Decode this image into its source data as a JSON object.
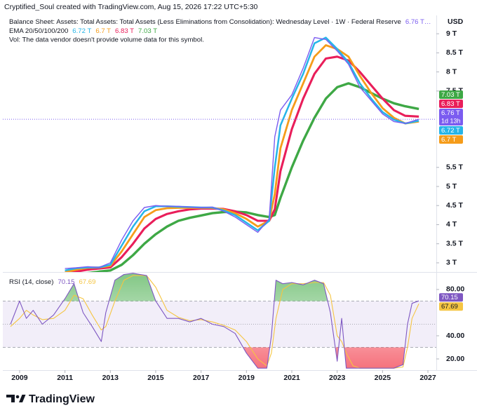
{
  "header": {
    "attribution": "Cryptified_Soul created with TradingView.com, Aug 15, 2026 17:22 UTC+5:30"
  },
  "chart_data": [
    {
      "type": "line",
      "title": "Balance Sheet: Assets: Total Assets: Total Assets (Less Eliminations from Consolidation): Wednesday Level · 1W · Federal Reserve",
      "indicator": "EMA 20/50/100/200",
      "note": "Vol: The data vendor doesn't provide volume data for this symbol.",
      "currency": "USD",
      "x": [
        2011,
        2011.5,
        2012,
        2012.5,
        2013,
        2013.5,
        2014,
        2014.5,
        2015,
        2015.5,
        2016,
        2016.5,
        2017,
        2017.5,
        2018,
        2018.5,
        2019,
        2019.5,
        2020,
        2020.25,
        2020.5,
        2021,
        2021.5,
        2022,
        2022.5,
        2023,
        2023.5,
        2024,
        2024.5,
        2025,
        2025.5,
        2026,
        2026.6
      ],
      "xlim": [
        2008.26,
        2027.37
      ],
      "ylim": [
        2.76,
        9.48
      ],
      "yticks": [
        {
          "value": 9,
          "label": "9 T"
        },
        {
          "value": 8.5,
          "label": "8.5 T"
        },
        {
          "value": 8,
          "label": "8 T"
        },
        {
          "value": 7.5,
          "label": "7.5 T"
        },
        {
          "value": 5.5,
          "label": "5.5 T"
        },
        {
          "value": 5,
          "label": "5 T"
        },
        {
          "value": 4.5,
          "label": "4.5 T"
        },
        {
          "value": 4,
          "label": "4 T"
        },
        {
          "value": 3.5,
          "label": "3.5 T"
        },
        {
          "value": 3,
          "label": "3 T"
        }
      ],
      "series": [
        {
          "color": "#7b5cf0",
          "legend_label": "6.76 T…",
          "last_label": "6.76 T",
          "countdown": "1d 13h",
          "values": [
            2.85,
            2.87,
            2.9,
            2.88,
            3.0,
            3.6,
            4.1,
            4.45,
            4.5,
            4.48,
            4.48,
            4.46,
            4.45,
            4.46,
            4.35,
            4.2,
            4.0,
            3.8,
            4.15,
            6.3,
            7.0,
            7.4,
            8.1,
            8.9,
            8.85,
            8.55,
            8.2,
            7.6,
            7.25,
            6.9,
            6.7,
            6.65,
            6.76
          ]
        },
        {
          "color": "#26b5e8",
          "legend_label": "6.72 T",
          "last_label": "6.72 T",
          "values": [
            2.8,
            2.86,
            2.88,
            2.88,
            2.95,
            3.45,
            3.95,
            4.35,
            4.48,
            4.48,
            4.47,
            4.46,
            4.45,
            4.45,
            4.37,
            4.25,
            4.05,
            3.85,
            4.1,
            5.5,
            6.6,
            7.3,
            7.95,
            8.75,
            8.9,
            8.6,
            8.25,
            7.7,
            7.3,
            6.95,
            6.75,
            6.65,
            6.72
          ]
        },
        {
          "color": "#f59c1a",
          "legend_label": "6.7 T",
          "last_label": "6.7 T",
          "values": [
            2.75,
            2.82,
            2.87,
            2.88,
            2.92,
            3.3,
            3.75,
            4.2,
            4.38,
            4.43,
            4.44,
            4.44,
            4.44,
            4.44,
            4.4,
            4.3,
            4.15,
            3.95,
            4.1,
            4.8,
            6.0,
            7.0,
            7.7,
            8.4,
            8.7,
            8.6,
            8.4,
            7.9,
            7.45,
            7.05,
            6.8,
            6.65,
            6.7
          ]
        },
        {
          "color": "#e91e5a",
          "legend_label": "6.83 T",
          "last_label": "6.83 T",
          "values": [
            2.7,
            2.77,
            2.82,
            2.85,
            2.88,
            3.15,
            3.5,
            3.9,
            4.15,
            4.28,
            4.35,
            4.4,
            4.42,
            4.42,
            4.41,
            4.35,
            4.25,
            4.1,
            4.1,
            4.4,
            5.4,
            6.5,
            7.3,
            7.95,
            8.35,
            8.4,
            8.3,
            8.0,
            7.65,
            7.3,
            7.0,
            6.85,
            6.83
          ]
        },
        {
          "color": "#3ea845",
          "legend_label": "7.03 T",
          "last_label": "7.03 T",
          "values": [
            2.6,
            2.68,
            2.73,
            2.77,
            2.8,
            2.95,
            3.2,
            3.5,
            3.75,
            3.95,
            4.1,
            4.18,
            4.24,
            4.3,
            4.33,
            4.34,
            4.32,
            4.25,
            4.2,
            4.25,
            4.7,
            5.5,
            6.2,
            6.8,
            7.3,
            7.6,
            7.7,
            7.6,
            7.45,
            7.3,
            7.18,
            7.1,
            7.03
          ]
        }
      ]
    },
    {
      "type": "line",
      "title": "RSI (14, close)",
      "x": [
        2008.6,
        2009.0,
        2009.3,
        2009.6,
        2010.0,
        2010.5,
        2011.0,
        2011.4,
        2011.8,
        2012.2,
        2012.6,
        2012.8,
        2013.2,
        2013.6,
        2014.0,
        2014.6,
        2015.0,
        2015.5,
        2016.0,
        2016.5,
        2017.0,
        2017.5,
        2018.0,
        2018.5,
        2019.0,
        2019.5,
        2019.9,
        2020.1,
        2020.3,
        2020.6,
        2021.0,
        2021.5,
        2022.0,
        2022.4,
        2022.7,
        2023.0,
        2023.2,
        2023.4,
        2023.7,
        2024.0,
        2024.5,
        2025.0,
        2025.5,
        2025.9,
        2026.1,
        2026.3,
        2026.6
      ],
      "xlim": [
        2008.26,
        2027.37
      ],
      "xticks": [
        2009,
        2011,
        2013,
        2015,
        2017,
        2019,
        2021,
        2023,
        2025,
        2027
      ],
      "ylim": [
        10.3,
        94.5
      ],
      "yticks": [
        {
          "value": 80,
          "label": "80.00"
        },
        {
          "value": 40,
          "label": "40.00"
        },
        {
          "value": 20,
          "label": "20.00"
        }
      ],
      "levels": [
        70,
        50,
        30
      ],
      "series": [
        {
          "color": "#7e57c2",
          "values": [
            50,
            70,
            55,
            62,
            50,
            58,
            72,
            85,
            60,
            48,
            35,
            60,
            88,
            93,
            94,
            92,
            70,
            55,
            55,
            52,
            55,
            50,
            48,
            42,
            25,
            12,
            12,
            40,
            88,
            85,
            86,
            84,
            88,
            85,
            60,
            18,
            55,
            12,
            12,
            12,
            12,
            12,
            12,
            15,
            50,
            68,
            70.15
          ]
        },
        {
          "color": "#f5c542",
          "values": [
            48,
            55,
            62,
            58,
            54,
            55,
            62,
            75,
            72,
            58,
            45,
            48,
            70,
            88,
            92,
            92,
            82,
            62,
            56,
            53,
            54,
            52,
            49,
            45,
            35,
            20,
            14,
            25,
            55,
            80,
            85,
            85,
            86,
            86,
            75,
            40,
            35,
            25,
            14,
            12,
            12,
            12,
            12,
            13,
            30,
            55,
            67.69
          ]
        }
      ]
    }
  ],
  "footer": {
    "brand": "TradingView"
  }
}
